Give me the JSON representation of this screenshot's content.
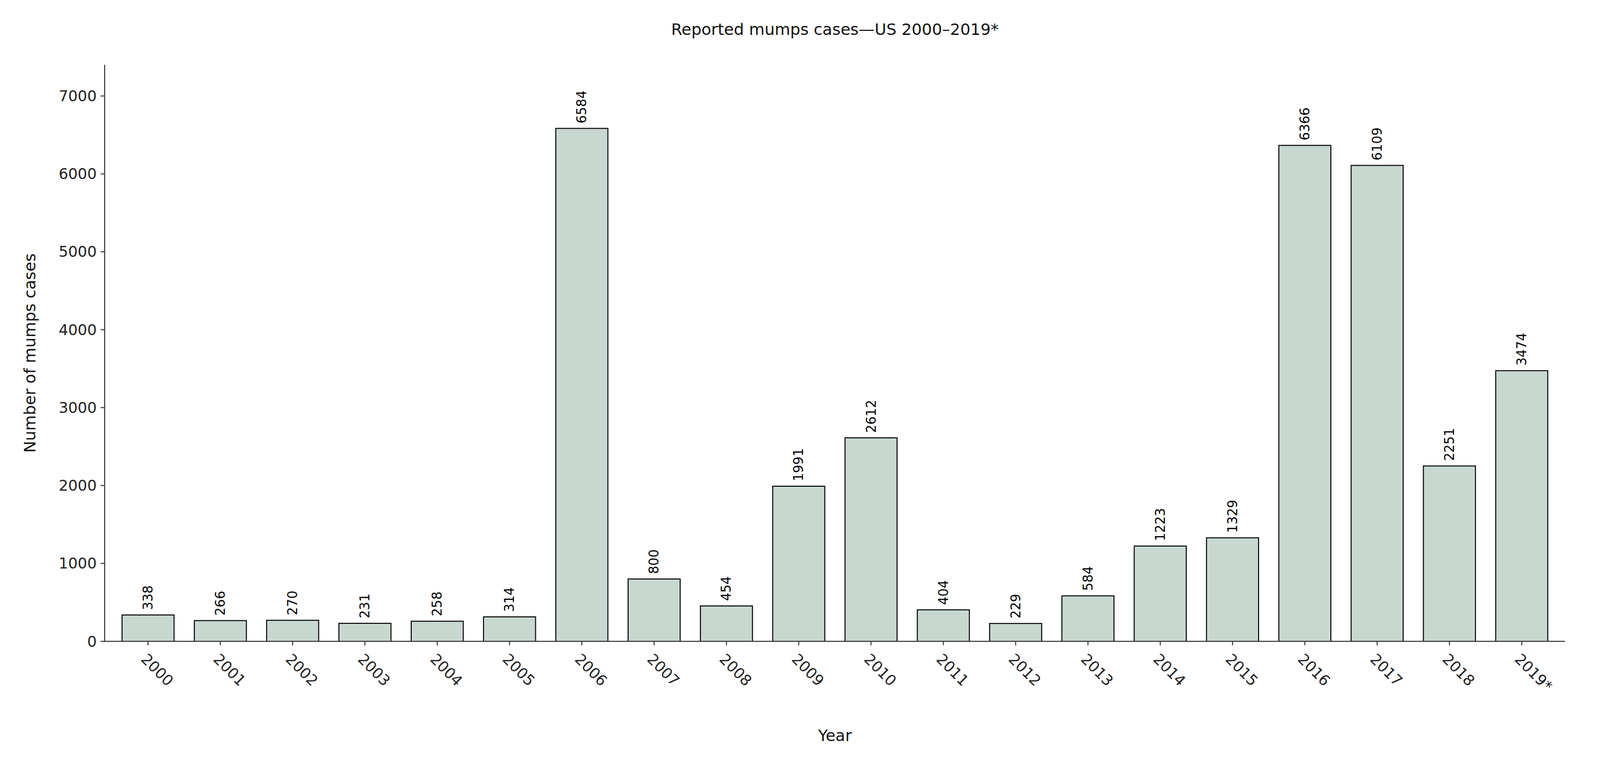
{
  "chart_data": {
    "type": "bar",
    "title": "Reported mumps cases—US 2000–2019*",
    "xlabel": "Year",
    "ylabel": "Number of mumps cases",
    "categories": [
      "2000",
      "2001",
      "2002",
      "2003",
      "2004",
      "2005",
      "2006",
      "2007",
      "2008",
      "2009",
      "2010",
      "2011",
      "2012",
      "2013",
      "2014",
      "2015",
      "2016",
      "2017",
      "2018",
      "2019*"
    ],
    "values": [
      338,
      266,
      270,
      231,
      258,
      314,
      6584,
      800,
      454,
      1991,
      2612,
      404,
      229,
      584,
      1223,
      1329,
      6366,
      6109,
      2251,
      3474
    ],
    "color": "#c8d8d0",
    "ylim": [
      0,
      7400
    ],
    "yticks": [
      0,
      1000,
      2000,
      3000,
      4000,
      5000,
      6000,
      7000
    ],
    "grid": false,
    "data_labels": true
  }
}
